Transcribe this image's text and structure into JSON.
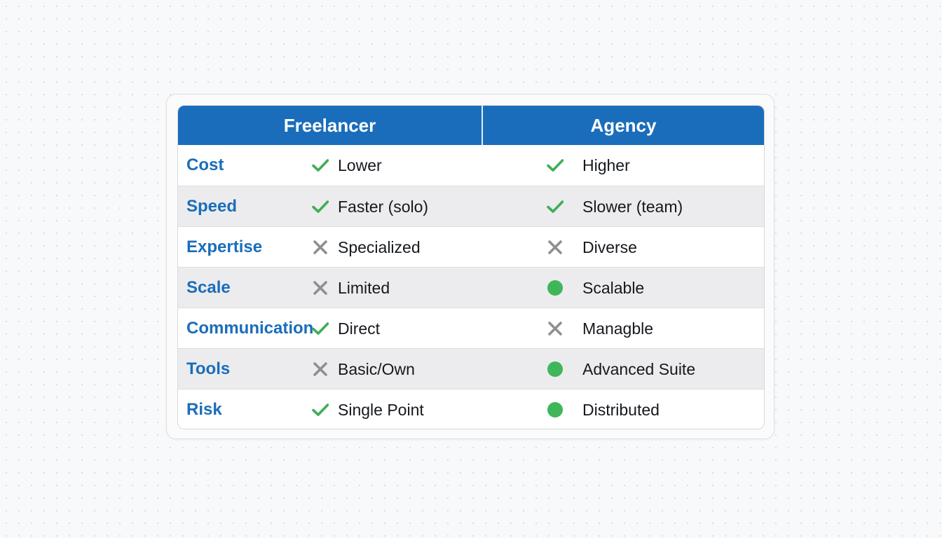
{
  "header": {
    "freelancer": "Freelancer",
    "agency": "Agency"
  },
  "colors": {
    "brand": "#1a6dbb",
    "check": "#3fae55",
    "cross": "#8f8f8f",
    "dot": "#3fb65a"
  },
  "rows": [
    {
      "label": "Cost",
      "freelancer": {
        "icon": "check",
        "text": "Lower"
      },
      "agency": {
        "icon": "check",
        "text": "Higher"
      }
    },
    {
      "label": "Speed",
      "freelancer": {
        "icon": "check",
        "text": "Faster (solo)"
      },
      "agency": {
        "icon": "check",
        "text": "Slower (team)"
      }
    },
    {
      "label": "Expertise",
      "freelancer": {
        "icon": "cross",
        "text": "Specialized"
      },
      "agency": {
        "icon": "cross",
        "text": "Diverse"
      }
    },
    {
      "label": "Scale",
      "freelancer": {
        "icon": "cross",
        "text": "Limited"
      },
      "agency": {
        "icon": "dot",
        "text": "Scalable"
      }
    },
    {
      "label": "Communication",
      "freelancer": {
        "icon": "check",
        "text": "Direct"
      },
      "agency": {
        "icon": "cross",
        "text": "Managble"
      }
    },
    {
      "label": "Tools",
      "freelancer": {
        "icon": "cross",
        "text": "Basic/Own"
      },
      "agency": {
        "icon": "dot",
        "text": "Advanced Suite"
      }
    },
    {
      "label": "Risk",
      "freelancer": {
        "icon": "check",
        "text": "Single Point"
      },
      "agency": {
        "icon": "dot",
        "text": "Distributed"
      }
    }
  ]
}
